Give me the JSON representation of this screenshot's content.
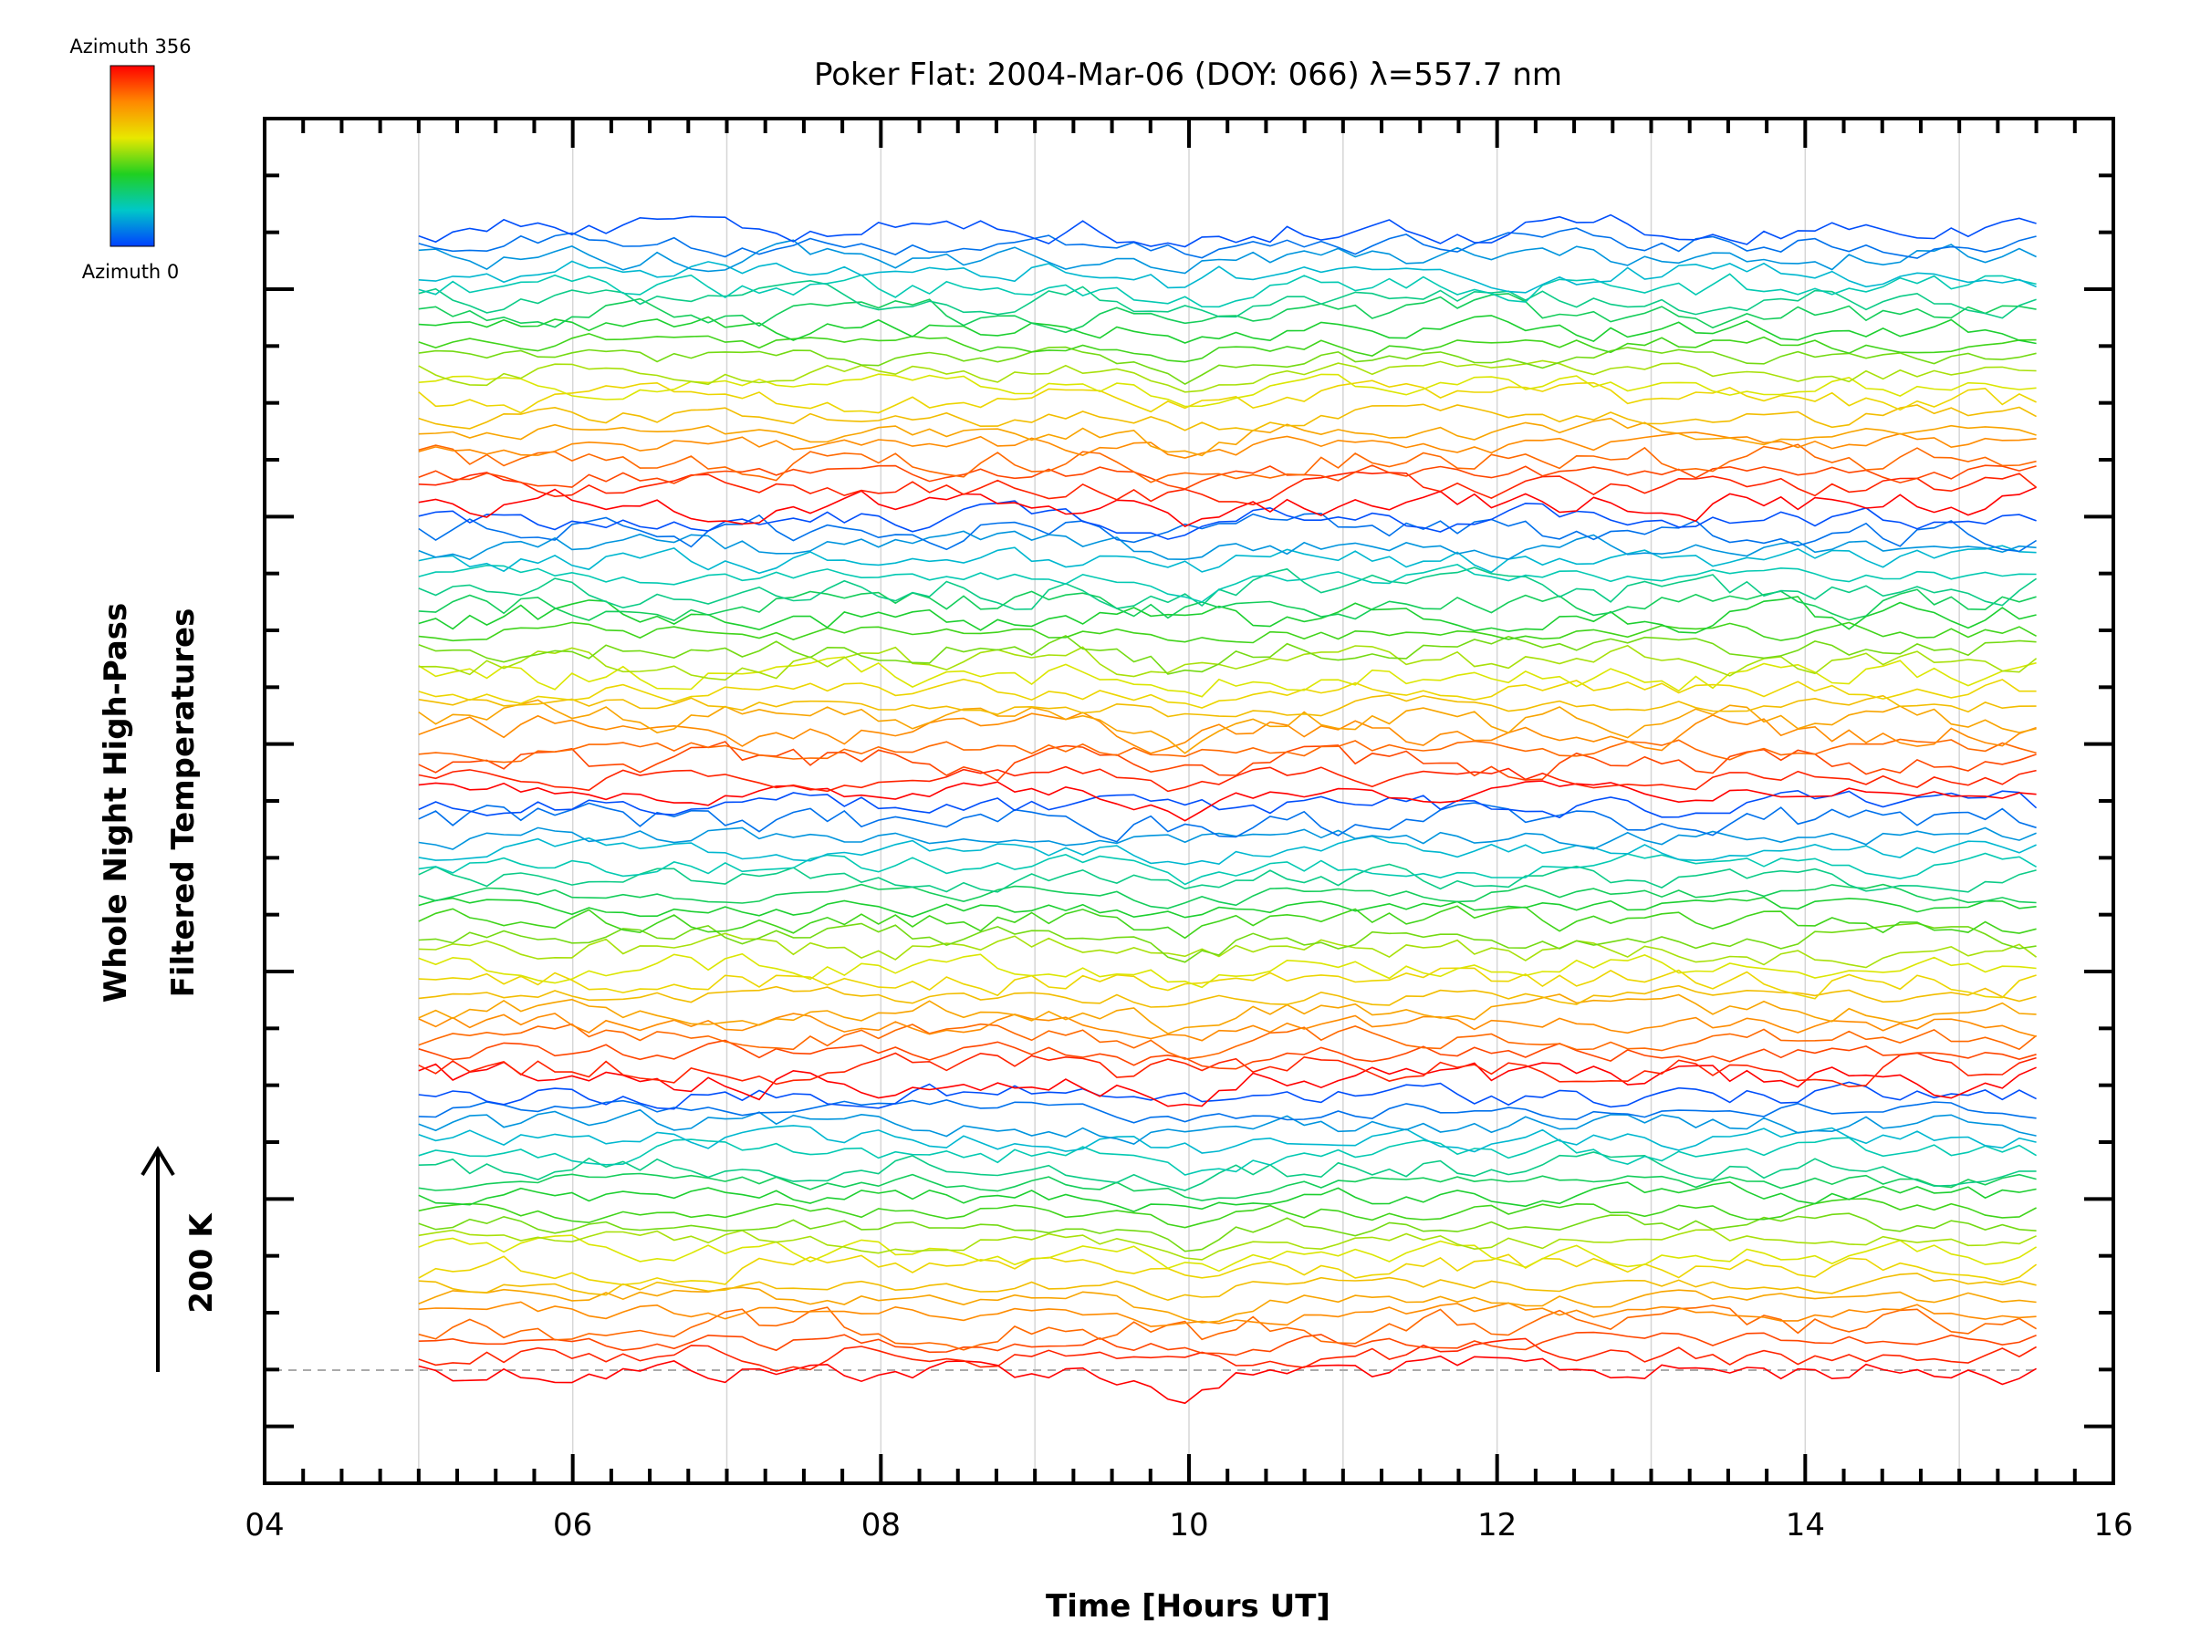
{
  "chart_data": {
    "type": "line",
    "title": "Poker Flat: 2004-Mar-06 (DOY: 066) λ=557.7 nm",
    "xlabel": "Time [Hours UT]",
    "ylabel_lines": [
      "Whole Night High-Pass",
      "Filtered Temperatures"
    ],
    "scale_bar_label": "200 K",
    "xlim": [
      4,
      16
    ],
    "x_tick_labels": [
      {
        "value": 4,
        "label": "04"
      },
      {
        "value": 6,
        "label": "06"
      },
      {
        "value": 8,
        "label": "08"
      },
      {
        "value": 10,
        "label": "10"
      },
      {
        "value": 12,
        "label": "12"
      },
      {
        "value": 14,
        "label": "14"
      },
      {
        "value": 16,
        "label": "16"
      }
    ],
    "x_minor_step": 0.25,
    "y_minor_tick_count": 24,
    "grid": "vertical every 1 hour",
    "baseline_dashed": true,
    "data_x_range": [
      5.0,
      15.5
    ],
    "series_count": 80,
    "series_spacing_K": 25,
    "colorbar": {
      "top_label": "Azimuth 356",
      "bottom_label": "Azimuth 0",
      "colors": [
        "#ff0000",
        "#ff8800",
        "#e8e800",
        "#20d020",
        "#00c8c8",
        "#0040ff"
      ]
    }
  }
}
